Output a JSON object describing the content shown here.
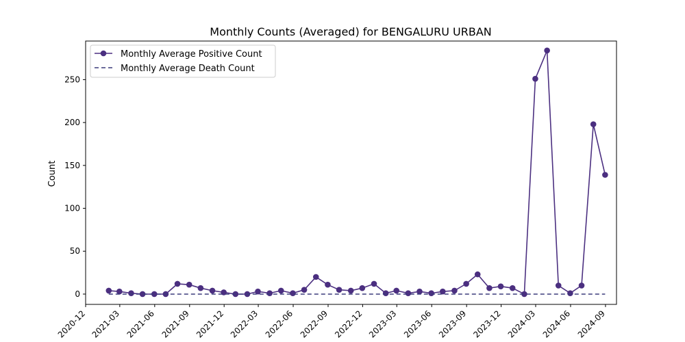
{
  "chart_data": {
    "type": "line",
    "title": "Monthly Counts (Averaged) for BENGALURU URBAN",
    "xlabel": "",
    "ylabel": "Count",
    "ylim": [
      -12,
      295
    ],
    "xlim": [
      "2020-12-01",
      "2024-09-30"
    ],
    "grid": false,
    "legend_position": "top-left",
    "x_ticks": [
      "2020-12",
      "2021-03",
      "2021-06",
      "2021-09",
      "2021-12",
      "2022-03",
      "2022-06",
      "2022-09",
      "2022-12",
      "2023-03",
      "2023-06",
      "2023-09",
      "2023-12",
      "2024-03",
      "2024-06",
      "2024-09"
    ],
    "y_ticks": [
      0,
      50,
      100,
      150,
      200,
      250
    ],
    "x": [
      "2021-01-31",
      "2021-02-28",
      "2021-03-31",
      "2021-04-30",
      "2021-05-31",
      "2021-06-30",
      "2021-07-31",
      "2021-08-31",
      "2021-09-30",
      "2021-10-31",
      "2021-11-30",
      "2021-12-31",
      "2022-01-31",
      "2022-02-28",
      "2022-03-31",
      "2022-04-30",
      "2022-05-31",
      "2022-06-30",
      "2022-07-31",
      "2022-08-31",
      "2022-09-30",
      "2022-10-31",
      "2022-11-30",
      "2022-12-31",
      "2023-01-31",
      "2023-02-28",
      "2023-03-31",
      "2023-04-30",
      "2023-05-31",
      "2023-06-30",
      "2023-07-31",
      "2023-08-31",
      "2023-09-30",
      "2023-10-31",
      "2023-11-30",
      "2023-12-31",
      "2024-01-31",
      "2024-02-29",
      "2024-03-31",
      "2024-04-30",
      "2024-05-31",
      "2024-06-30",
      "2024-07-31",
      "2024-08-31"
    ],
    "series": [
      {
        "name": "Monthly Average Positive Count",
        "style": "solid-marker",
        "color": "#4b2f80",
        "values": [
          4,
          3,
          1,
          0,
          0,
          0,
          12,
          11,
          7,
          4,
          2,
          0,
          0,
          3,
          1,
          4,
          1,
          5,
          20,
          11,
          5,
          4,
          7,
          12,
          1,
          4,
          1,
          3,
          1,
          3,
          4,
          12,
          23,
          7,
          9,
          7,
          0,
          251,
          284,
          10,
          1,
          10,
          198,
          139
        ]
      },
      {
        "name": "Monthly Average Death Count",
        "style": "dashed",
        "color": "#3a3a7a",
        "values": [
          0,
          0,
          0,
          0,
          0,
          0,
          0,
          0,
          0,
          0,
          0,
          0,
          0,
          0,
          0,
          0,
          0,
          0,
          0,
          0,
          0,
          0,
          0,
          0,
          0,
          0,
          0,
          0,
          0,
          0,
          0,
          0,
          0,
          0,
          0,
          0,
          0,
          0,
          0,
          0,
          0,
          0,
          0,
          0
        ]
      }
    ]
  }
}
